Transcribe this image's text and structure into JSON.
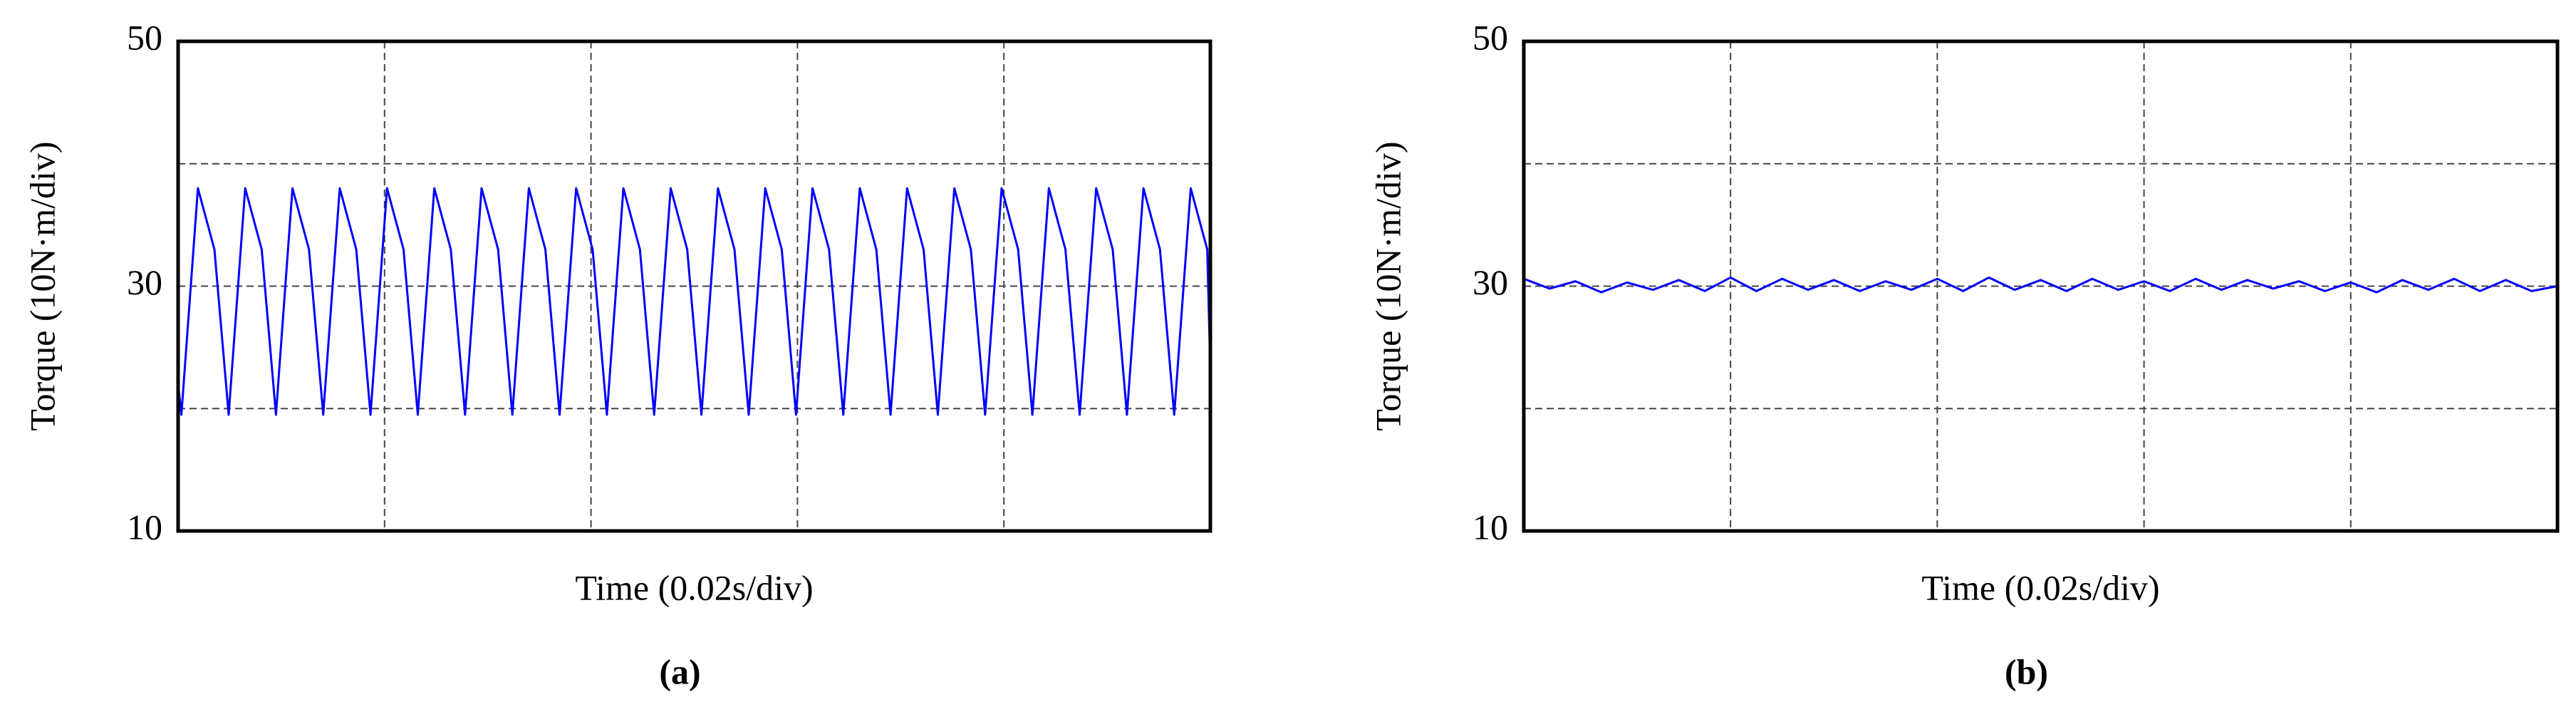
{
  "chart_data": [
    {
      "type": "line",
      "panel_label": "(a)",
      "ylabel": "Torque (10N·m/div)",
      "xlabel": "Time (0.02s/div)",
      "xlim": [
        0,
        5
      ],
      "ylim": [
        10,
        50
      ],
      "yticks": [
        10,
        30,
        50
      ],
      "grid_x": [
        1,
        2,
        3,
        4
      ],
      "grid_y": [
        20,
        30,
        40
      ],
      "x": [
        0,
        0.016,
        0.096,
        0.176,
        0.245,
        0.325,
        0.405,
        0.474,
        0.554,
        0.634,
        0.703,
        0.783,
        0.863,
        0.932,
        1.012,
        1.092,
        1.161,
        1.241,
        1.321,
        1.39,
        1.47,
        1.55,
        1.619,
        1.699,
        1.779,
        1.848,
        1.928,
        2.008,
        2.077,
        2.157,
        2.237,
        2.306,
        2.386,
        2.466,
        2.535,
        2.615,
        2.695,
        2.764,
        2.844,
        2.924,
        2.993,
        3.073,
        3.153,
        3.222,
        3.302,
        3.382,
        3.451,
        3.531,
        3.611,
        3.68,
        3.76,
        3.84,
        3.909,
        3.989,
        4.069,
        4.138,
        4.218,
        4.298,
        4.367,
        4.447,
        4.527,
        4.596,
        4.676,
        4.756,
        4.825,
        4.905,
        4.985,
        5
      ],
      "series": [
        {
          "color": "#0000ff",
          "values": [
            22,
            19.5,
            38,
            33,
            19.5,
            38,
            33,
            19.5,
            38,
            33,
            19.5,
            38,
            33,
            19.5,
            38,
            33,
            19.5,
            38,
            33,
            19.5,
            38,
            33,
            19.5,
            38,
            33,
            19.5,
            38,
            33,
            19.5,
            38,
            33,
            19.5,
            38,
            33,
            19.5,
            38,
            33,
            19.5,
            38,
            33,
            19.5,
            38,
            33,
            19.5,
            38,
            33,
            19.5,
            38,
            33,
            19.5,
            38,
            33,
            19.5,
            38,
            33,
            19.5,
            38,
            33,
            19.5,
            38,
            33,
            19.5,
            38,
            33,
            19.5,
            38,
            33,
            23
          ]
        }
      ]
    },
    {
      "type": "line",
      "panel_label": "(b)",
      "ylabel": "Torque (10N·m/div)",
      "xlabel": "Time (0.02s/div)",
      "xlim": [
        0,
        5
      ],
      "ylim": [
        10,
        50
      ],
      "yticks": [
        10,
        30,
        50
      ],
      "grid_x": [
        1,
        2,
        3,
        4
      ],
      "grid_y": [
        20,
        30,
        40
      ],
      "x": [
        0,
        0.125,
        0.25,
        0.375,
        0.5,
        0.625,
        0.75,
        0.875,
        1,
        1.125,
        1.25,
        1.375,
        1.5,
        1.625,
        1.75,
        1.875,
        2,
        2.125,
        2.25,
        2.375,
        2.5,
        2.625,
        2.75,
        2.875,
        3,
        3.125,
        3.25,
        3.375,
        3.5,
        3.625,
        3.75,
        3.875,
        4,
        4.125,
        4.25,
        4.375,
        4.5,
        4.625,
        4.75,
        4.875,
        5
      ],
      "series": [
        {
          "color": "#0000ff",
          "values": [
            30.6,
            29.8,
            30.4,
            29.5,
            30.3,
            29.7,
            30.5,
            29.6,
            30.7,
            29.6,
            30.6,
            29.7,
            30.5,
            29.6,
            30.4,
            29.7,
            30.6,
            29.6,
            30.7,
            29.7,
            30.5,
            29.6,
            30.6,
            29.7,
            30.4,
            29.6,
            30.6,
            29.7,
            30.5,
            29.8,
            30.4,
            29.6,
            30.3,
            29.5,
            30.5,
            29.7,
            30.6,
            29.6,
            30.5,
            29.6,
            30.0
          ]
        }
      ]
    }
  ]
}
